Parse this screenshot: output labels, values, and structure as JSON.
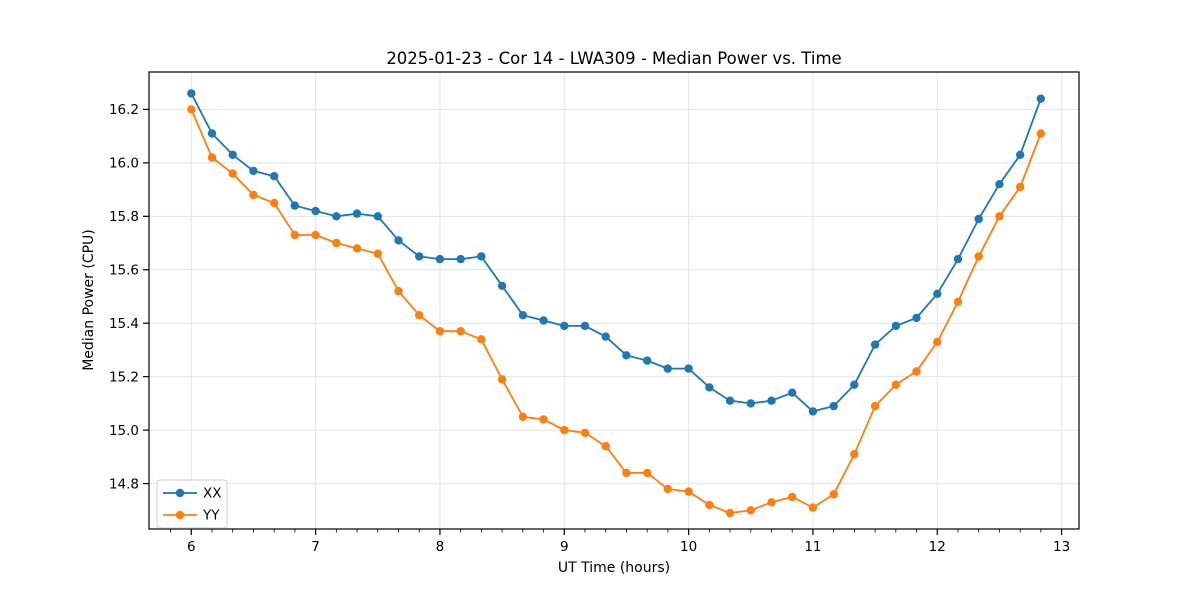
{
  "figure": {
    "background": "#ffffff"
  },
  "chart_data": {
    "type": "line",
    "title": "2025-01-23 - Cor 14 - LWA309 - Median Power vs. Time",
    "xlabel": "UT Time (hours)",
    "ylabel": "Median Power (CPU)",
    "grid": true,
    "legend_position": "lower left",
    "xlim": [
      5.66,
      13.14
    ],
    "ylim": [
      14.63,
      16.34
    ],
    "xticks": [
      6,
      7,
      8,
      9,
      10,
      11,
      12,
      13
    ],
    "xtick_labels": [
      "6",
      "7",
      "8",
      "9",
      "10",
      "11",
      "12",
      "13"
    ],
    "yticks": [
      14.8,
      15.0,
      15.2,
      15.4,
      15.6,
      15.8,
      16.0,
      16.2
    ],
    "ytick_labels": [
      "14.8",
      "15.0",
      "15.2",
      "15.4",
      "15.6",
      "15.8",
      "16.0",
      "16.2"
    ],
    "x_minor_step_hours": 0.1667,
    "x": [
      6.0,
      6.167,
      6.333,
      6.5,
      6.667,
      6.833,
      7.0,
      7.167,
      7.333,
      7.5,
      7.667,
      7.833,
      8.0,
      8.167,
      8.333,
      8.5,
      8.667,
      8.833,
      9.0,
      9.167,
      9.333,
      9.5,
      9.667,
      9.833,
      10.0,
      10.167,
      10.333,
      10.5,
      10.667,
      10.833,
      11.0,
      11.167,
      11.333,
      11.5,
      11.667,
      11.833,
      12.0,
      12.167,
      12.333,
      12.5,
      12.667,
      12.833
    ],
    "series": [
      {
        "name": "XX",
        "color": "#1f77b4",
        "values": [
          16.26,
          16.11,
          16.03,
          15.97,
          15.95,
          15.84,
          15.82,
          15.8,
          15.81,
          15.8,
          15.71,
          15.65,
          15.64,
          15.64,
          15.65,
          15.54,
          15.43,
          15.41,
          15.39,
          15.39,
          15.35,
          15.28,
          15.26,
          15.23,
          15.23,
          15.16,
          15.11,
          15.1,
          15.11,
          15.14,
          15.07,
          15.09,
          15.17,
          15.32,
          15.39,
          15.42,
          15.51,
          15.64,
          15.79,
          15.92,
          16.03,
          16.24
        ]
      },
      {
        "name": "YY",
        "color": "#ff7f0e",
        "values": [
          16.2,
          16.02,
          15.96,
          15.88,
          15.85,
          15.73,
          15.73,
          15.7,
          15.68,
          15.66,
          15.52,
          15.43,
          15.37,
          15.37,
          15.34,
          15.19,
          15.05,
          15.04,
          15.0,
          14.99,
          14.94,
          14.84,
          14.84,
          14.78,
          14.77,
          14.72,
          14.69,
          14.7,
          14.73,
          14.75,
          14.71,
          14.76,
          14.91,
          15.09,
          15.17,
          15.22,
          15.33,
          15.48,
          15.65,
          15.8,
          15.91,
          16.11
        ]
      }
    ],
    "style": {
      "grid_color": "#e4e4e4",
      "spine_color": "#000000",
      "marker_radius": 4.2,
      "line_width": 1.8
    }
  }
}
